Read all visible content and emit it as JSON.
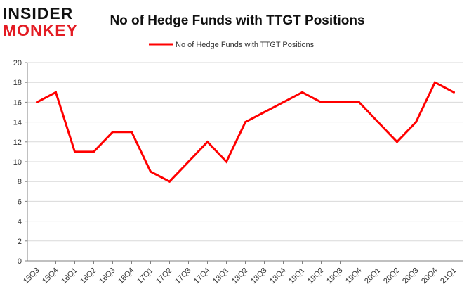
{
  "logo": {
    "line1": "INSIDER",
    "line2": "MONKEY"
  },
  "colors": {
    "series": "#ff0000",
    "grid": "#d9d9d9",
    "axis": "#808080",
    "text": "#333333",
    "brand_red": "#e31b23"
  },
  "chart_data": {
    "type": "line",
    "title": "No of Hedge Funds with TTGT Positions",
    "xlabel": "",
    "ylabel": "",
    "ylim": [
      0,
      20
    ],
    "yticks": [
      0,
      2,
      4,
      6,
      8,
      10,
      12,
      14,
      16,
      18,
      20
    ],
    "grid": true,
    "legend_position": "top-center",
    "categories": [
      "15Q3",
      "15Q4",
      "16Q1",
      "16Q2",
      "16Q3",
      "16Q4",
      "17Q1",
      "17Q2",
      "17Q3",
      "17Q4",
      "18Q1",
      "18Q2",
      "18Q3",
      "18Q4",
      "19Q1",
      "19Q2",
      "19Q3",
      "19Q4",
      "20Q1",
      "20Q2",
      "20Q3",
      "20Q4",
      "21Q1"
    ],
    "series": [
      {
        "name": "No of Hedge Funds with TTGT Positions",
        "values": [
          16,
          17,
          11,
          11,
          13,
          13,
          9,
          8,
          10,
          12,
          10,
          14,
          15,
          16,
          17,
          16,
          16,
          16,
          14,
          12,
          14,
          18,
          17
        ]
      }
    ]
  }
}
